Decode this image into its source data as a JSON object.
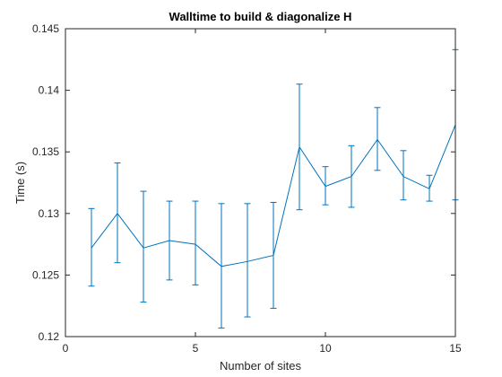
{
  "chart_data": {
    "type": "line",
    "title": "Walltime to build & diagonalize H",
    "xlabel": "Number of sites",
    "ylabel": "Time (s)",
    "xlim": [
      0,
      15
    ],
    "ylim": [
      0.12,
      0.145
    ],
    "xticks": [
      0,
      5,
      10,
      15
    ],
    "yticks": [
      0.12,
      0.125,
      0.13,
      0.135,
      0.14,
      0.145
    ],
    "xtick_labels": [
      "0",
      "5",
      "10",
      "15"
    ],
    "ytick_labels": [
      "0.12",
      "0.125",
      "0.13",
      "0.135",
      "0.14",
      "0.145"
    ],
    "grid": false,
    "box": true,
    "series": [
      {
        "color": "#0072BD",
        "x": [
          1,
          2,
          3,
          4,
          5,
          6,
          7,
          8,
          9,
          10,
          11,
          12,
          13,
          14,
          15
        ],
        "y": [
          0.1272,
          0.13,
          0.1272,
          0.1278,
          0.1275,
          0.1257,
          0.1261,
          0.1266,
          0.1354,
          0.1322,
          0.133,
          0.136,
          0.133,
          0.132,
          0.1372
        ],
        "err_low": [
          0.1241,
          0.126,
          0.1228,
          0.1246,
          0.1242,
          0.1207,
          0.1216,
          0.1223,
          0.1303,
          0.1307,
          0.1305,
          0.1335,
          0.1311,
          0.131,
          0.1311
        ],
        "err_high": [
          0.1304,
          0.1341,
          0.1318,
          0.131,
          0.131,
          0.1308,
          0.1308,
          0.1309,
          0.1405,
          0.1338,
          0.1355,
          0.1386,
          0.1351,
          0.1331,
          0.1433
        ]
      }
    ]
  }
}
